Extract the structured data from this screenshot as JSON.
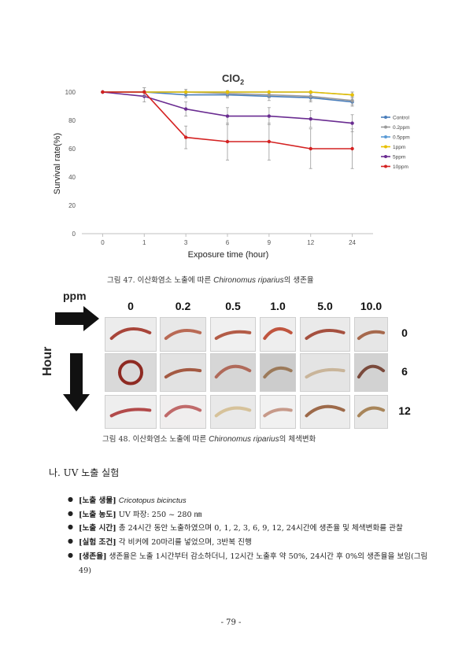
{
  "chart_data": {
    "type": "line",
    "title": "ClO",
    "title_subscript": "2",
    "xlabel": "Exposure time (hour)",
    "ylabel": "Survival rate(%)",
    "categories": [
      "0",
      "1",
      "3",
      "6",
      "9",
      "12",
      "24"
    ],
    "ylim": [
      0,
      100
    ],
    "yticks": [
      0,
      20,
      40,
      60,
      80,
      100
    ],
    "grid": false,
    "legend_position": "right",
    "series": [
      {
        "name": "Control",
        "color": "#4a7ebb",
        "values": [
          100,
          100,
          98,
          98,
          97,
          96,
          93
        ],
        "err": [
          0,
          3,
          2,
          2,
          3,
          3,
          3
        ]
      },
      {
        "name": "0.2ppm",
        "color": "#9a9a9a",
        "values": [
          100,
          100,
          100,
          99,
          98,
          97,
          94
        ],
        "err": [
          0,
          0,
          2,
          2,
          2,
          3,
          3
        ]
      },
      {
        "name": "0.5ppm",
        "color": "#5b9bd5",
        "values": [
          100,
          100,
          100,
          100,
          100,
          100,
          98
        ],
        "err": [
          0,
          0,
          0,
          0,
          0,
          0,
          2
        ]
      },
      {
        "name": "1ppm",
        "color": "#e8c000",
        "values": [
          100,
          100,
          100,
          100,
          100,
          100,
          98
        ],
        "err": [
          0,
          0,
          0,
          0,
          0,
          0,
          2
        ]
      },
      {
        "name": "5ppm",
        "color": "#6a2c91",
        "values": [
          100,
          97,
          88,
          83,
          83,
          81,
          78
        ],
        "err": [
          0,
          4,
          5,
          6,
          6,
          6,
          6
        ]
      },
      {
        "name": "10ppm",
        "color": "#d42222",
        "values": [
          100,
          100,
          68,
          65,
          65,
          60,
          60
        ],
        "err": [
          0,
          3,
          8,
          13,
          13,
          14,
          14
        ]
      }
    ]
  },
  "captions": {
    "fig47": {
      "prefix": "그림 47. 이산화염소 노출에 따른 ",
      "species": "Chironomus riparius",
      "suffix": "의 생존율"
    },
    "fig48": {
      "prefix": "그림 48. 이산화염소 노출에 따른 ",
      "species": "Chironomus riparius",
      "suffix": "의 체색변화"
    }
  },
  "photo_grid": {
    "ppm_label": "ppm",
    "hour_label": "Hour",
    "columns": [
      "0",
      "0.2",
      "0.5",
      "1.0",
      "5.0",
      "10.0"
    ],
    "rows": [
      "0",
      "6",
      "12"
    ],
    "arrow_color": "#111111"
  },
  "section": {
    "heading": "나. UV 노출 실험",
    "bullets": [
      {
        "label": "[노출 생물]",
        "text": "",
        "italic": "Cricotopus bicinctus"
      },
      {
        "label": "[노출 농도]",
        "text": " UV 파장: 250 ~ 280 ㎚",
        "italic": ""
      },
      {
        "label": "[노출 시간]",
        "text": " 총 24시간 동안 노출하였으며 0, 1, 2, 3, 6, 9, 12, 24시간에 생존율 및 체색변화를 관찰",
        "italic": ""
      },
      {
        "label": "[실험 조건]",
        "text": " 각 비커에 20마리를 넣었으며, 3반복 진행",
        "italic": ""
      },
      {
        "label": "[생존율]",
        "text": " 생존율은 노출 1시간부터 감소하더니, 12시간 노출후 약 50%, 24시간 후 0%의 생존율을 보임(그림 49)",
        "italic": ""
      }
    ]
  },
  "page_number": "- 79 -"
}
